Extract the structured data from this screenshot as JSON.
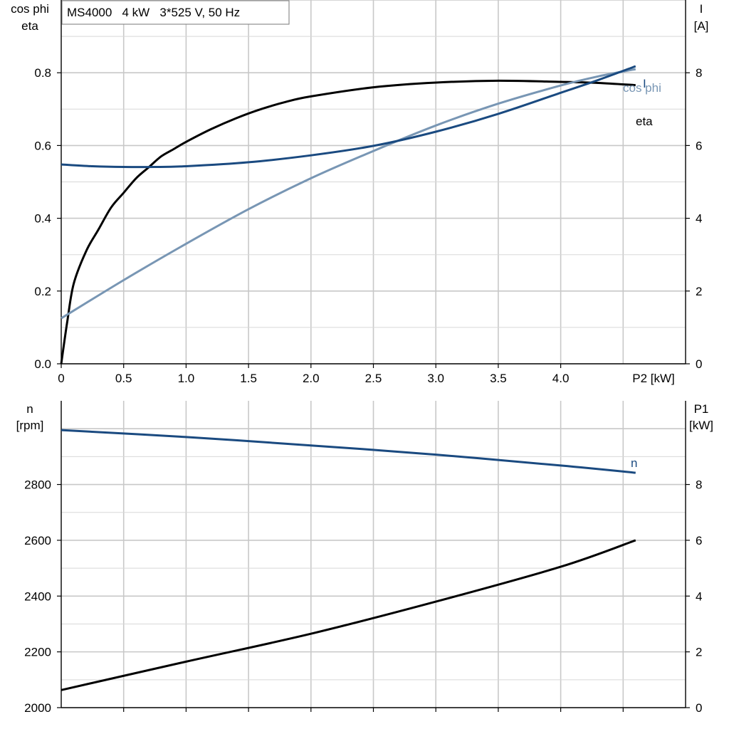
{
  "chart_data": [
    {
      "type": "line",
      "title": "MS4000   4 kW   3*525 V, 50 Hz",
      "xlabel": "P2 [kW]",
      "xlim": [
        0,
        5
      ],
      "xticks": [
        0,
        0.5,
        1.0,
        1.5,
        2.0,
        2.5,
        3.0,
        3.5,
        4.0
      ],
      "xtick_labels": [
        "0",
        "0.5",
        "1.0",
        "1.5",
        "2.0",
        "2.5",
        "3.0",
        "3.5",
        "4.0"
      ],
      "ylabel_left": [
        "cos phi",
        "eta"
      ],
      "ylim_left": [
        0,
        1.0
      ],
      "yticks_left": [
        "0.0",
        "0.2",
        "0.4",
        "0.6",
        "0.8"
      ],
      "ylabel_right": [
        "I",
        "[A]"
      ],
      "ylim_right": [
        0,
        10
      ],
      "yticks_right": [
        "0",
        "2",
        "4",
        "6",
        "8"
      ],
      "grid": true,
      "series": [
        {
          "name": "eta",
          "axis": "left",
          "color": "#000000",
          "x": [
            0,
            0.05,
            0.1,
            0.2,
            0.3,
            0.4,
            0.5,
            0.6,
            0.7,
            0.8,
            0.9,
            1.0,
            1.2,
            1.4,
            1.6,
            1.8,
            2.0,
            2.5,
            3.0,
            3.5,
            4.0,
            4.3,
            4.6
          ],
          "y": [
            0.0,
            0.12,
            0.22,
            0.31,
            0.37,
            0.43,
            0.47,
            0.51,
            0.54,
            0.57,
            0.59,
            0.61,
            0.645,
            0.675,
            0.7,
            0.72,
            0.735,
            0.76,
            0.773,
            0.778,
            0.775,
            0.772,
            0.766
          ]
        },
        {
          "name": "cos phi",
          "axis": "left",
          "color": "#7896b4",
          "x": [
            0,
            0.5,
            1.0,
            1.5,
            2.0,
            2.5,
            3.0,
            3.5,
            4.0,
            4.3,
            4.6
          ],
          "y": [
            0.125,
            0.23,
            0.33,
            0.425,
            0.51,
            0.585,
            0.655,
            0.715,
            0.765,
            0.79,
            0.81
          ]
        },
        {
          "name": "I",
          "axis": "right",
          "color": "#1a4a80",
          "x": [
            0,
            0.25,
            0.5,
            0.75,
            1.0,
            1.5,
            2.0,
            2.5,
            3.0,
            3.5,
            4.0,
            4.3,
            4.6
          ],
          "y": [
            5.48,
            5.43,
            5.41,
            5.41,
            5.43,
            5.54,
            5.73,
            5.99,
            6.38,
            6.87,
            7.45,
            7.8,
            8.18
          ]
        }
      ]
    },
    {
      "type": "line",
      "xlim": [
        0,
        5
      ],
      "ylabel_left": [
        "n",
        "[rpm]"
      ],
      "ylim_left": [
        2000,
        3100
      ],
      "yticks_left": [
        "2000",
        "2200",
        "2400",
        "2600",
        "2800"
      ],
      "ylabel_right": [
        "P1",
        "[kW]"
      ],
      "ylim_right": [
        0,
        11
      ],
      "yticks_right": [
        "0",
        "2",
        "4",
        "6",
        "8"
      ],
      "grid": true,
      "series": [
        {
          "name": "n",
          "axis": "left",
          "color": "#1a4a80",
          "x": [
            0,
            1,
            2,
            3,
            4,
            4.6
          ],
          "y": [
            2995,
            2970,
            2940,
            2907,
            2868,
            2842
          ]
        },
        {
          "axis": "right",
          "color": "#000000",
          "x": [
            0,
            1,
            2,
            3,
            4,
            4.6
          ],
          "y": [
            0.63,
            1.65,
            2.65,
            3.8,
            5.05,
            6.0
          ]
        }
      ]
    }
  ]
}
